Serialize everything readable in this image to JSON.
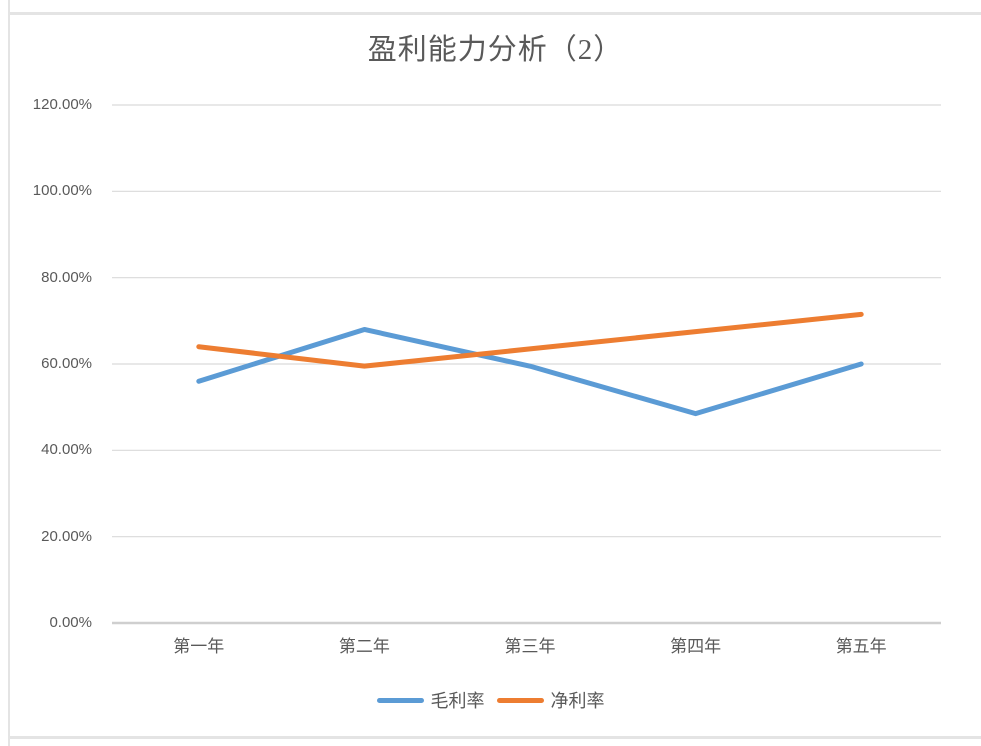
{
  "chart_data": {
    "type": "line",
    "title": "盈利能力分析（2）",
    "categories": [
      "第一年",
      "第二年",
      "第三年",
      "第四年",
      "第五年"
    ],
    "series": [
      {
        "name": "毛利率",
        "color": "#5B9BD5",
        "values": [
          56,
          68,
          59.5,
          48.5,
          60
        ]
      },
      {
        "name": "净利率",
        "color": "#ED7D31",
        "values": [
          64,
          59.5,
          63.5,
          67.5,
          71.5
        ]
      }
    ],
    "unit": "percent",
    "y_axis": {
      "min": 0,
      "max": 120,
      "step": 20,
      "tick_labels": [
        "0.00%",
        "20.00%",
        "40.00%",
        "60.00%",
        "80.00%",
        "100.00%",
        "120.00%"
      ]
    },
    "grid": true,
    "legend_position": "bottom",
    "colors": {
      "gridline": "#D9D9D9",
      "axis_line": "#CFCFCF",
      "text": "#595959",
      "background": "#FFFFFF"
    }
  }
}
